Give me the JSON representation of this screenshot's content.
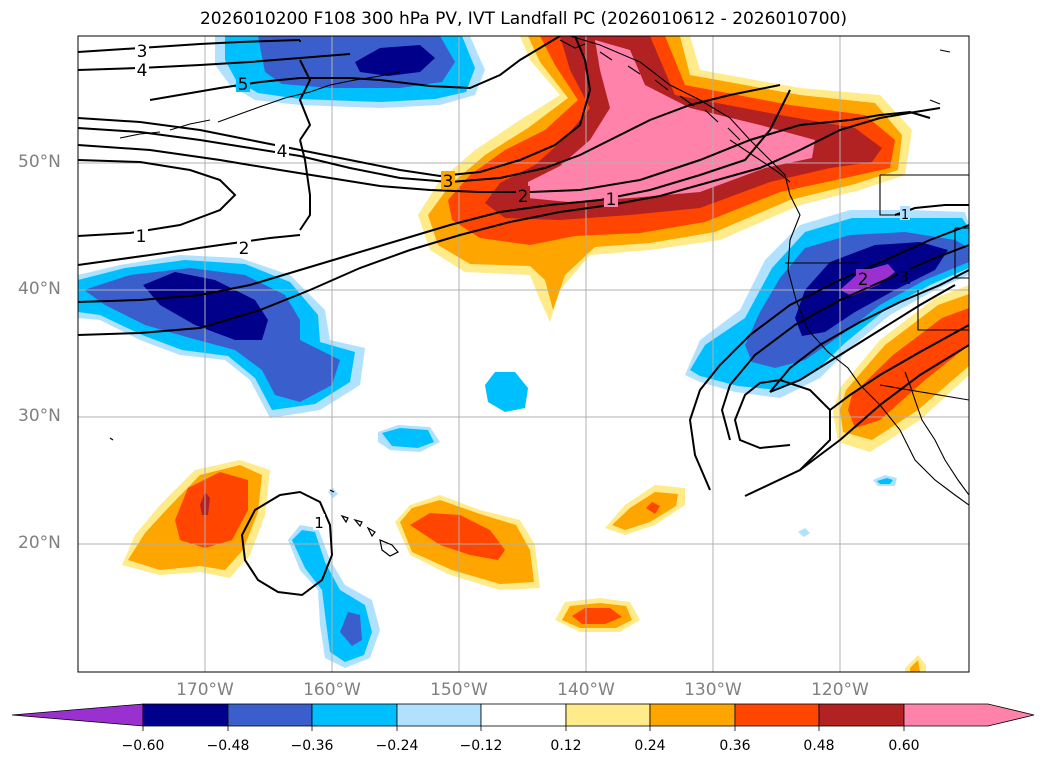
{
  "title": "2026010200 F108 300 hPa PV, IVT Landfall PC (2026010612 - 2026010700)",
  "lat_labels": [
    "50°N",
    "40°N",
    "30°N",
    "20°N"
  ],
  "lon_labels": [
    "170°W",
    "160°W",
    "150°W",
    "140°W",
    "130°W",
    "120°W"
  ],
  "colorbar": {
    "ticks": [
      "−0.60",
      "−0.48",
      "−0.36",
      "−0.24",
      "−0.12",
      "0.12",
      "0.24",
      "0.36",
      "0.48",
      "0.60"
    ],
    "colors": [
      "#9b30d0",
      "#00008b",
      "#3a5fcd",
      "#00bfff",
      "#b0e2ff",
      "#ffffff",
      "#ffeb8a",
      "#ffa500",
      "#ff4500",
      "#b22222",
      "#ff82ab"
    ]
  },
  "contour_labels": {
    "c3_top": "3",
    "c4_top": "4",
    "c5": "5",
    "c4_mid": "4",
    "c3_mid": "3",
    "c2_mid": "2",
    "c1_mid": "1",
    "c1_left": "1",
    "c2_left": "2",
    "c1_hawaii": "1",
    "c2_east": "2",
    "c3_east": "3",
    "c1_coast": "1"
  },
  "colors": {
    "axis": "#000000",
    "grid": "#b0b0b0",
    "tick_label": "#808080"
  }
}
